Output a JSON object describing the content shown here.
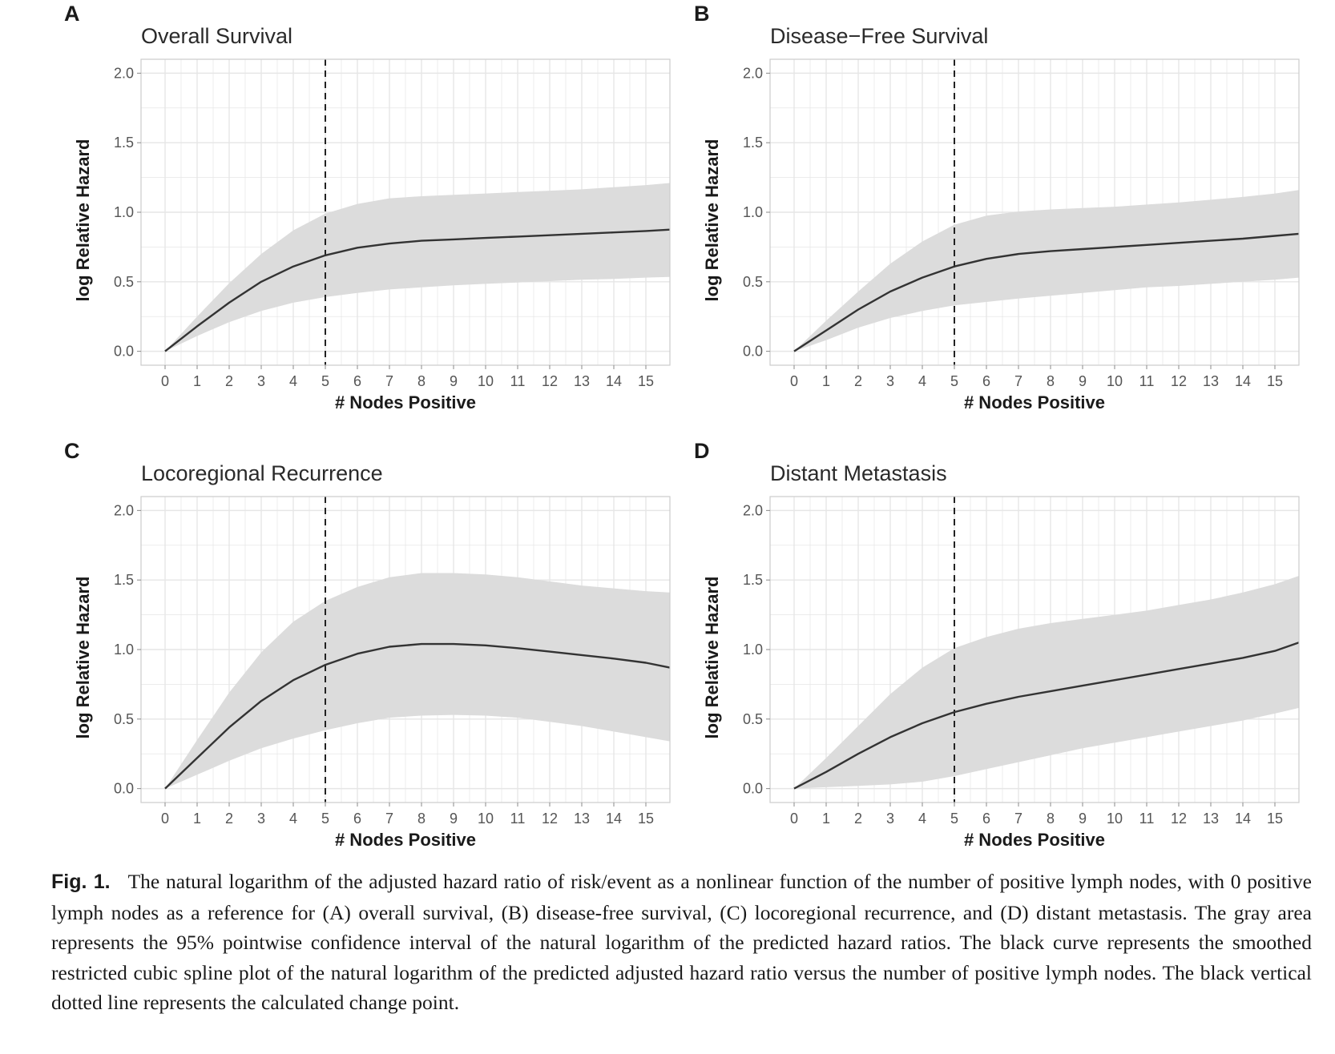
{
  "figure": {
    "caption_label": "Fig. 1.",
    "caption_text": "The natural logarithm of the adjusted hazard ratio of risk/event as a nonlinear function of the number of positive lymph nodes, with 0 positive lymph nodes as a reference for (A) overall survival, (B) disease-free survival, (C) locoregional recurrence, and (D) distant metastasis. The gray area represents the 95% pointwise confidence interval of the natural logarithm of the predicted hazard ratios. The black curve represents the smoothed restricted cubic spline plot of the natural logarithm of the predicted adjusted hazard ratio versus the number of positive lymph nodes. The black vertical dotted line represents the calculated change point."
  },
  "colors": {
    "ci_band": "#dcdcdc",
    "curve": "#333333",
    "grid": "#e6e6e6",
    "panel_border": "#cccccc",
    "change_point_line": "#222222"
  },
  "chart_data": [
    {
      "panel": "A",
      "type": "line",
      "title": "Overall Survival",
      "xlabel": "# Nodes Positive",
      "ylabel": "log Relative Hazard",
      "xlim": [
        -0.75,
        15.75
      ],
      "ylim": [
        -0.1,
        2.1
      ],
      "xticks": [
        0,
        1,
        2,
        3,
        4,
        5,
        6,
        7,
        8,
        9,
        10,
        11,
        12,
        13,
        14,
        15
      ],
      "yticks": [
        0,
        0.5,
        1,
        1.5,
        2
      ],
      "ytick_labels": [
        "0.0",
        "0.5",
        "1.0",
        "1.5",
        "2.0"
      ],
      "change_point": 5,
      "grid": true,
      "x": [
        0,
        1,
        2,
        3,
        4,
        5,
        6,
        7,
        8,
        9,
        10,
        11,
        12,
        13,
        14,
        15,
        15.75
      ],
      "estimate": [
        0,
        0.18,
        0.35,
        0.5,
        0.61,
        0.69,
        0.745,
        0.775,
        0.795,
        0.805,
        0.815,
        0.825,
        0.835,
        0.845,
        0.855,
        0.865,
        0.875
      ],
      "ci_upper": [
        0,
        0.25,
        0.49,
        0.7,
        0.87,
        0.99,
        1.06,
        1.1,
        1.115,
        1.125,
        1.135,
        1.145,
        1.155,
        1.165,
        1.18,
        1.195,
        1.21
      ],
      "ci_lower": [
        0,
        0.11,
        0.21,
        0.29,
        0.35,
        0.39,
        0.42,
        0.445,
        0.46,
        0.475,
        0.485,
        0.495,
        0.505,
        0.515,
        0.52,
        0.53,
        0.535
      ]
    },
    {
      "panel": "B",
      "type": "line",
      "title": "Disease−Free Survival",
      "xlabel": "# Nodes Positive",
      "ylabel": "log Relative Hazard",
      "xlim": [
        -0.75,
        15.75
      ],
      "ylim": [
        -0.1,
        2.1
      ],
      "xticks": [
        0,
        1,
        2,
        3,
        4,
        5,
        6,
        7,
        8,
        9,
        10,
        11,
        12,
        13,
        14,
        15
      ],
      "yticks": [
        0,
        0.5,
        1,
        1.5,
        2
      ],
      "ytick_labels": [
        "0.0",
        "0.5",
        "1.0",
        "1.5",
        "2.0"
      ],
      "change_point": 5,
      "grid": true,
      "x": [
        0,
        1,
        2,
        3,
        4,
        5,
        6,
        7,
        8,
        9,
        10,
        11,
        12,
        13,
        14,
        15,
        15.75
      ],
      "estimate": [
        0,
        0.15,
        0.3,
        0.43,
        0.53,
        0.61,
        0.665,
        0.7,
        0.72,
        0.735,
        0.75,
        0.765,
        0.78,
        0.795,
        0.81,
        0.83,
        0.845
      ],
      "ci_upper": [
        0,
        0.22,
        0.43,
        0.63,
        0.79,
        0.91,
        0.975,
        1.005,
        1.02,
        1.03,
        1.04,
        1.055,
        1.07,
        1.09,
        1.11,
        1.135,
        1.16
      ],
      "ci_lower": [
        0,
        0.08,
        0.17,
        0.24,
        0.29,
        0.33,
        0.355,
        0.38,
        0.4,
        0.42,
        0.44,
        0.46,
        0.47,
        0.485,
        0.5,
        0.515,
        0.53
      ]
    },
    {
      "panel": "C",
      "type": "line",
      "title": "Locoregional Recurrence",
      "xlabel": "# Nodes Positive",
      "ylabel": "log Relative Hazard",
      "xlim": [
        -0.75,
        15.75
      ],
      "ylim": [
        -0.1,
        2.1
      ],
      "xticks": [
        0,
        1,
        2,
        3,
        4,
        5,
        6,
        7,
        8,
        9,
        10,
        11,
        12,
        13,
        14,
        15
      ],
      "yticks": [
        0,
        0.5,
        1,
        1.5,
        2
      ],
      "ytick_labels": [
        "0.0",
        "0.5",
        "1.0",
        "1.5",
        "2.0"
      ],
      "change_point": 5,
      "grid": true,
      "x": [
        0,
        1,
        2,
        3,
        4,
        5,
        6,
        7,
        8,
        9,
        10,
        11,
        12,
        13,
        14,
        15,
        15.75
      ],
      "estimate": [
        0,
        0.22,
        0.44,
        0.63,
        0.78,
        0.89,
        0.97,
        1.02,
        1.04,
        1.04,
        1.03,
        1.01,
        0.985,
        0.96,
        0.935,
        0.905,
        0.87
      ],
      "ci_upper": [
        0,
        0.35,
        0.69,
        0.98,
        1.2,
        1.35,
        1.45,
        1.52,
        1.55,
        1.55,
        1.54,
        1.52,
        1.49,
        1.46,
        1.44,
        1.42,
        1.41
      ],
      "ci_lower": [
        0,
        0.1,
        0.2,
        0.29,
        0.36,
        0.42,
        0.47,
        0.51,
        0.525,
        0.53,
        0.525,
        0.51,
        0.48,
        0.45,
        0.41,
        0.37,
        0.34
      ]
    },
    {
      "panel": "D",
      "type": "line",
      "title": "Distant Metastasis",
      "xlabel": "# Nodes Positive",
      "ylabel": "log Relative Hazard",
      "xlim": [
        -0.75,
        15.75
      ],
      "ylim": [
        -0.1,
        2.1
      ],
      "xticks": [
        0,
        1,
        2,
        3,
        4,
        5,
        6,
        7,
        8,
        9,
        10,
        11,
        12,
        13,
        14,
        15
      ],
      "yticks": [
        0,
        0.5,
        1,
        1.5,
        2
      ],
      "ytick_labels": [
        "0.0",
        "0.5",
        "1.0",
        "1.5",
        "2.0"
      ],
      "change_point": 5,
      "grid": true,
      "x": [
        0,
        1,
        2,
        3,
        4,
        5,
        6,
        7,
        8,
        9,
        10,
        11,
        12,
        13,
        14,
        15,
        15.75
      ],
      "estimate": [
        0,
        0.12,
        0.25,
        0.37,
        0.47,
        0.55,
        0.61,
        0.66,
        0.7,
        0.74,
        0.78,
        0.82,
        0.86,
        0.9,
        0.94,
        0.99,
        1.05
      ],
      "ci_upper": [
        0,
        0.22,
        0.45,
        0.68,
        0.87,
        1.01,
        1.09,
        1.15,
        1.19,
        1.22,
        1.25,
        1.28,
        1.32,
        1.36,
        1.41,
        1.47,
        1.53
      ],
      "ci_lower": [
        0,
        0.01,
        0.02,
        0.03,
        0.05,
        0.09,
        0.14,
        0.19,
        0.24,
        0.29,
        0.33,
        0.37,
        0.41,
        0.45,
        0.49,
        0.54,
        0.58
      ]
    }
  ]
}
